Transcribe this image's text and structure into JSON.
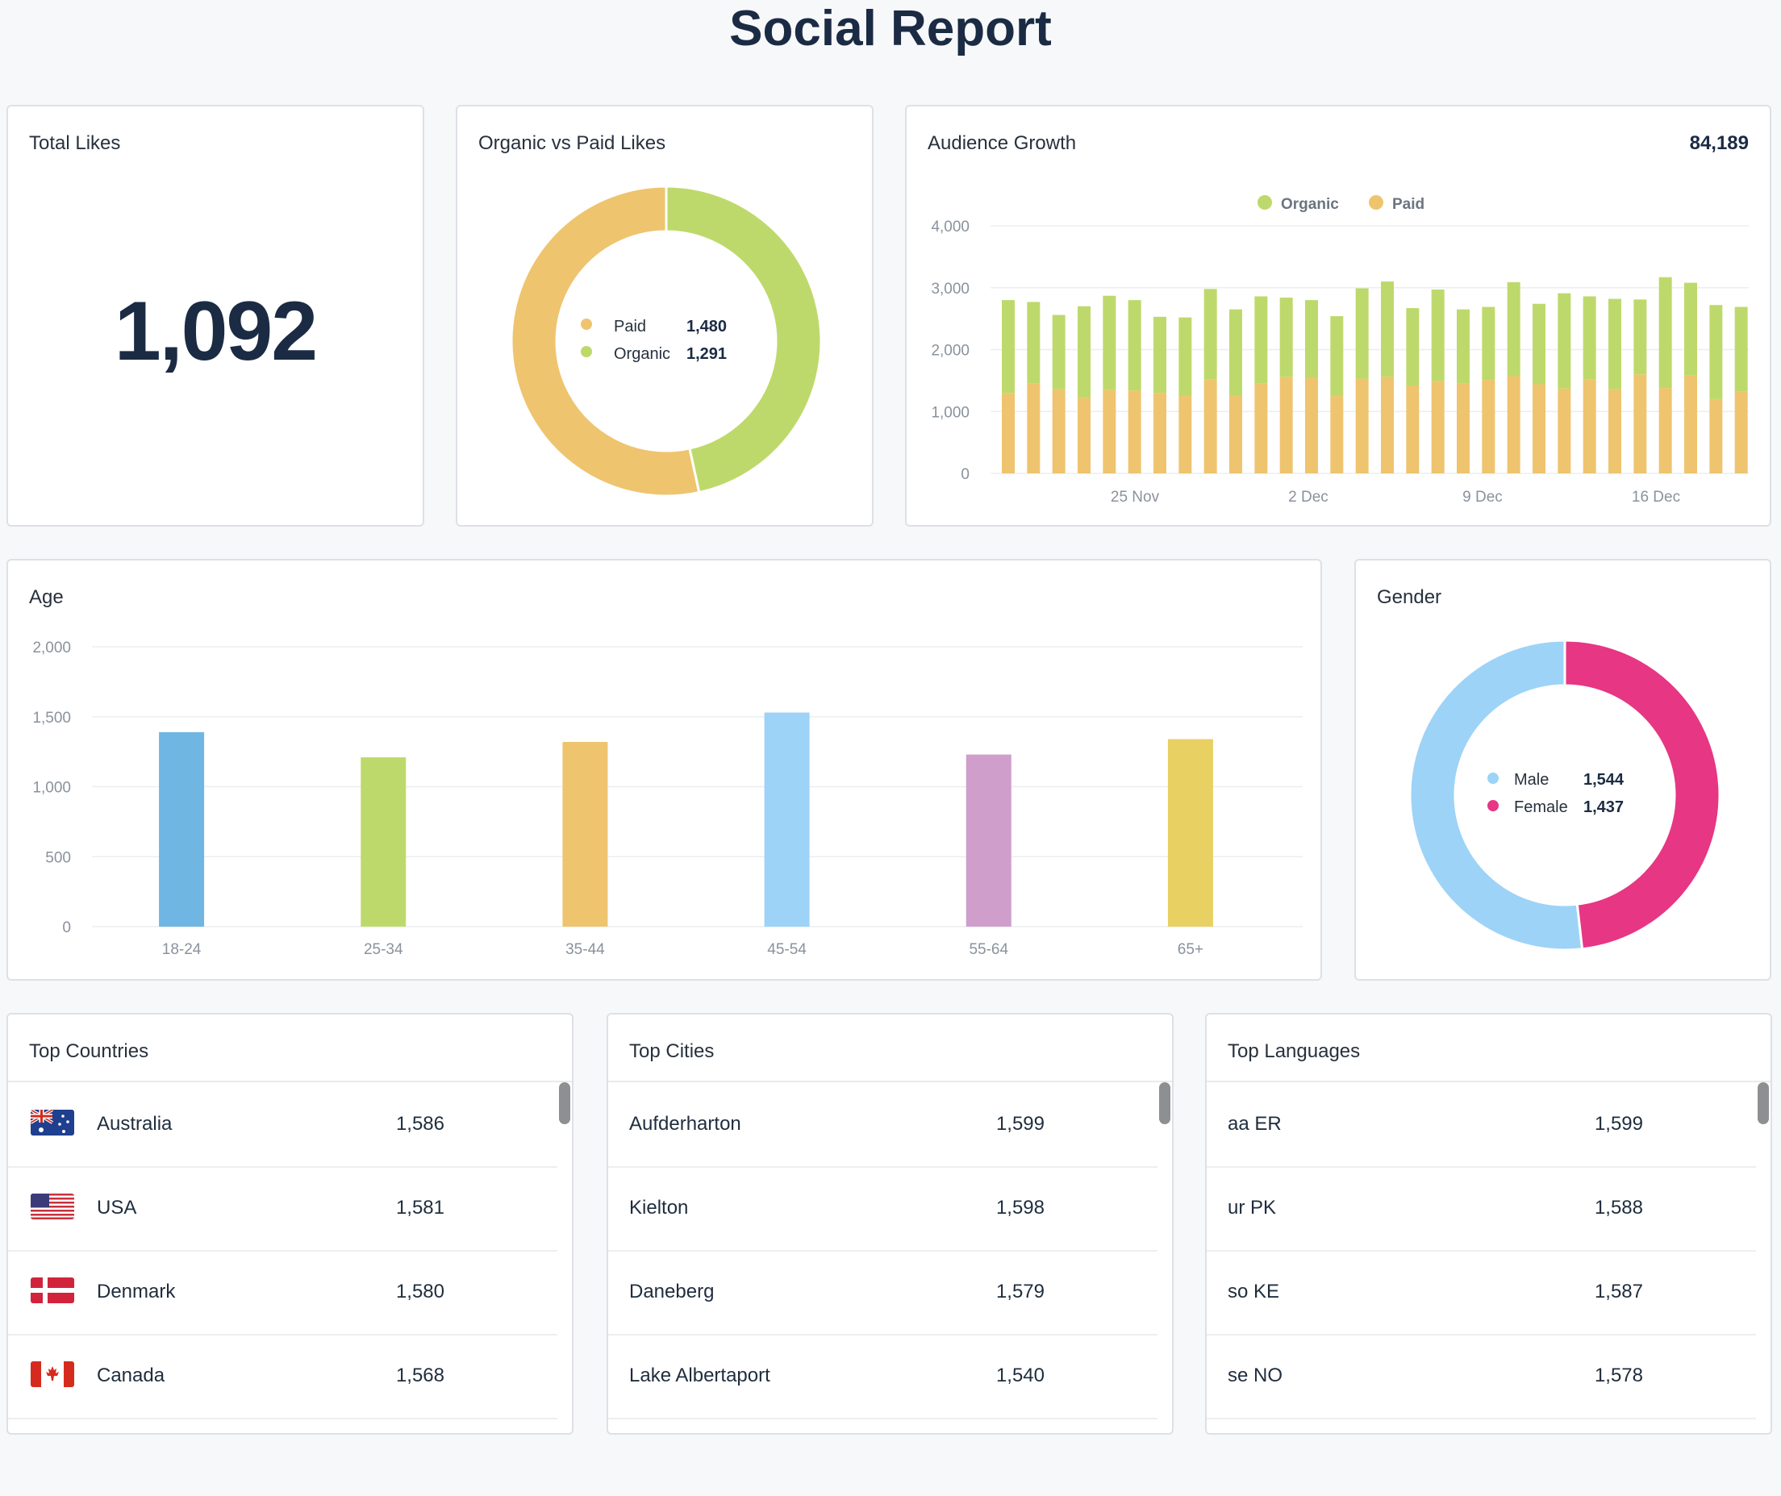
{
  "title": "Social Report",
  "total_likes": {
    "title": "Total Likes",
    "value": "1,092"
  },
  "organic_paid": {
    "title": "Organic vs Paid Likes",
    "legend": [
      {
        "label": "Paid",
        "value": "1,480",
        "color": "#efc46f"
      },
      {
        "label": "Organic",
        "value": "1,291",
        "color": "#bed96b"
      }
    ]
  },
  "audience_growth": {
    "title": "Audience Growth",
    "total": "84,189",
    "legend": [
      {
        "label": "Organic",
        "color": "#bed96b"
      },
      {
        "label": "Paid",
        "color": "#efc46f"
      }
    ],
    "y_ticks": [
      "4,000",
      "3,000",
      "2,000",
      "1,000",
      "0"
    ],
    "x_ticks": [
      "25 Nov",
      "2 Dec",
      "9 Dec",
      "16 Dec"
    ]
  },
  "age": {
    "title": "Age",
    "y_ticks": [
      "2,000",
      "1,500",
      "1,000",
      "500",
      "0"
    ]
  },
  "gender": {
    "title": "Gender",
    "legend": [
      {
        "label": "Male",
        "value": "1,544",
        "color": "#9dd3f7"
      },
      {
        "label": "Female",
        "value": "1,437",
        "color": "#e73683"
      }
    ]
  },
  "top_countries": {
    "title": "Top Countries",
    "rows": [
      {
        "name": "Australia",
        "value": "1,586",
        "flag": "australia-flag-icon"
      },
      {
        "name": "USA",
        "value": "1,581",
        "flag": "usa-flag-icon"
      },
      {
        "name": "Denmark",
        "value": "1,580",
        "flag": "denmark-flag-icon"
      },
      {
        "name": "Canada",
        "value": "1,568",
        "flag": "canada-flag-icon"
      }
    ]
  },
  "top_cities": {
    "title": "Top Cities",
    "rows": [
      {
        "name": "Aufderharton",
        "value": "1,599"
      },
      {
        "name": "Kielton",
        "value": "1,598"
      },
      {
        "name": "Daneberg",
        "value": "1,579"
      },
      {
        "name": "Lake Albertaport",
        "value": "1,540"
      }
    ]
  },
  "top_languages": {
    "title": "Top Languages",
    "rows": [
      {
        "name": "aa ER",
        "value": "1,599"
      },
      {
        "name": "ur PK",
        "value": "1,588"
      },
      {
        "name": "so KE",
        "value": "1,587"
      },
      {
        "name": "se NO",
        "value": "1,578"
      }
    ]
  },
  "chart_data": [
    {
      "type": "pie",
      "title": "Organic vs Paid Likes",
      "categories": [
        "Paid",
        "Organic"
      ],
      "values": [
        1480,
        1291
      ],
      "colors": [
        "#efc46f",
        "#bed96b"
      ]
    },
    {
      "type": "bar",
      "stacked": true,
      "title": "Audience Growth",
      "ylim": [
        0,
        4000
      ],
      "x_tick_labels": [
        "25 Nov",
        "2 Dec",
        "9 Dec",
        "16 Dec"
      ],
      "series": [
        {
          "name": "Paid",
          "color": "#efc46f",
          "values": [
            1300,
            1450,
            1360,
            1220,
            1350,
            1340,
            1300,
            1250,
            1520,
            1250,
            1450,
            1560,
            1550,
            1250,
            1530,
            1560,
            1420,
            1490,
            1450,
            1510,
            1570,
            1440,
            1370,
            1520,
            1360,
            1600,
            1380,
            1580,
            1200,
            1320
          ]
        },
        {
          "name": "Organic",
          "color": "#bed96b",
          "values": [
            1500,
            1320,
            1200,
            1480,
            1520,
            1460,
            1230,
            1270,
            1460,
            1400,
            1410,
            1280,
            1250,
            1290,
            1460,
            1540,
            1250,
            1480,
            1200,
            1180,
            1520,
            1300,
            1540,
            1340,
            1460,
            1210,
            1790,
            1500,
            1520,
            1370
          ]
        }
      ]
    },
    {
      "type": "bar",
      "title": "Age",
      "categories": [
        "18-24",
        "25-34",
        "35-44",
        "45-54",
        "55-64",
        "65+"
      ],
      "values": [
        1390,
        1210,
        1320,
        1530,
        1230,
        1340
      ],
      "colors": [
        "#6fb6e3",
        "#bed96b",
        "#efc46f",
        "#9dd3f7",
        "#cf9ecb",
        "#e9d062"
      ],
      "ylim": [
        0,
        2000
      ]
    },
    {
      "type": "pie",
      "title": "Gender",
      "categories": [
        "Male",
        "Female"
      ],
      "values": [
        1544,
        1437
      ],
      "colors": [
        "#9dd3f7",
        "#e73683"
      ]
    }
  ]
}
